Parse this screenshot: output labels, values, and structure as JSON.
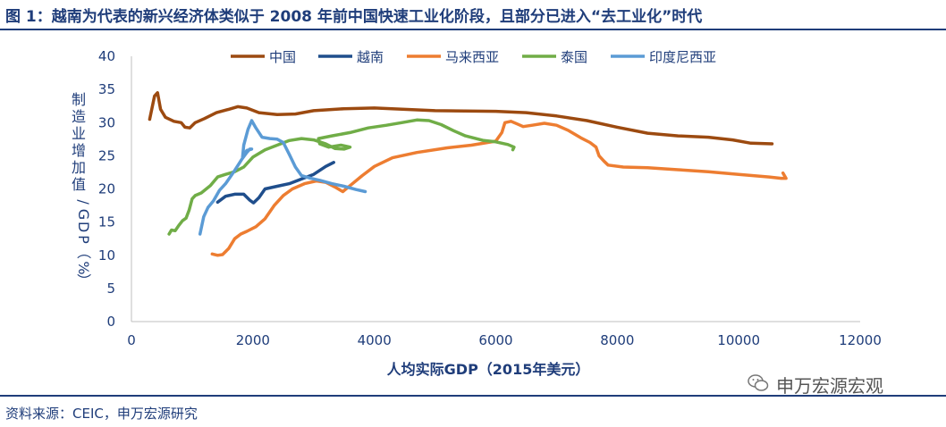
{
  "header": {
    "title": "图 1：越南为代表的新兴经济体类似于 2008 年前中国快速工业化阶段，且部分已进入“去工业化”时代"
  },
  "footer": {
    "source": "资料来源：CEIC，申万宏源研究",
    "watermark": "申万宏源宏观"
  },
  "icons": {
    "watermark": "wechat-icon"
  },
  "chart_data": {
    "type": "line",
    "xlabel": "人均实际GDP（2015年美元）",
    "ylabel": "制造业增加值/GDP（%）",
    "xlim": [
      0,
      12000
    ],
    "ylim": [
      0,
      40
    ],
    "x_ticks": [
      0,
      2000,
      4000,
      6000,
      8000,
      10000,
      12000
    ],
    "y_ticks": [
      0,
      5,
      10,
      15,
      20,
      25,
      30,
      35,
      40
    ],
    "grid": false,
    "legend_position": "top",
    "series": [
      {
        "name": "中国",
        "color": "#9c4a10",
        "points": [
          [
            300,
            30.5
          ],
          [
            380,
            34
          ],
          [
            430,
            34.5
          ],
          [
            480,
            32
          ],
          [
            560,
            30.8
          ],
          [
            700,
            30.2
          ],
          [
            820,
            30
          ],
          [
            880,
            29.3
          ],
          [
            960,
            29.2
          ],
          [
            1050,
            30
          ],
          [
            1200,
            30.6
          ],
          [
            1400,
            31.5
          ],
          [
            1600,
            32
          ],
          [
            1750,
            32.4
          ],
          [
            1900,
            32.2
          ],
          [
            2100,
            31.5
          ],
          [
            2400,
            31.2
          ],
          [
            2700,
            31.3
          ],
          [
            3000,
            31.8
          ],
          [
            3500,
            32.1
          ],
          [
            4000,
            32.2
          ],
          [
            4500,
            32
          ],
          [
            5000,
            31.8
          ],
          [
            6000,
            31.7
          ],
          [
            6500,
            31.5
          ],
          [
            7000,
            31
          ],
          [
            7500,
            30.3
          ],
          [
            8000,
            29.3
          ],
          [
            8500,
            28.4
          ],
          [
            9000,
            28
          ],
          [
            9500,
            27.8
          ],
          [
            9900,
            27.4
          ],
          [
            10200,
            26.9
          ],
          [
            10550,
            26.8
          ]
        ]
      },
      {
        "name": "越南",
        "color": "#1f4e8c",
        "points": [
          [
            1420,
            18
          ],
          [
            1550,
            18.9
          ],
          [
            1700,
            19.2
          ],
          [
            1850,
            19.2
          ],
          [
            1950,
            18.3
          ],
          [
            2010,
            17.9
          ],
          [
            2100,
            18.7
          ],
          [
            2200,
            20
          ],
          [
            2400,
            20.4
          ],
          [
            2600,
            20.8
          ],
          [
            2800,
            21.5
          ],
          [
            3000,
            22.2
          ],
          [
            3200,
            23.4
          ],
          [
            3330,
            24
          ]
        ]
      },
      {
        "name": "马来西亚",
        "color": "#ed7d31",
        "points": [
          [
            1330,
            10.2
          ],
          [
            1420,
            10
          ],
          [
            1500,
            10.1
          ],
          [
            1600,
            11
          ],
          [
            1700,
            12.5
          ],
          [
            1800,
            13.2
          ],
          [
            1900,
            13.6
          ],
          [
            2050,
            14.3
          ],
          [
            2200,
            15.5
          ],
          [
            2350,
            17.5
          ],
          [
            2500,
            19
          ],
          [
            2650,
            20
          ],
          [
            2850,
            20.8
          ],
          [
            3050,
            21.2
          ],
          [
            3200,
            21
          ],
          [
            3350,
            20.3
          ],
          [
            3480,
            19.6
          ],
          [
            3600,
            20.5
          ],
          [
            3800,
            22
          ],
          [
            4000,
            23.4
          ],
          [
            4300,
            24.7
          ],
          [
            4700,
            25.5
          ],
          [
            5200,
            26.2
          ],
          [
            5600,
            26.6
          ],
          [
            6000,
            27.2
          ],
          [
            6100,
            28.5
          ],
          [
            6150,
            30
          ],
          [
            6250,
            30.2
          ],
          [
            6350,
            29.8
          ],
          [
            6450,
            29.4
          ],
          [
            6600,
            29.6
          ],
          [
            6800,
            29.9
          ],
          [
            7000,
            29.6
          ],
          [
            7200,
            28.8
          ],
          [
            7400,
            27.7
          ],
          [
            7550,
            27
          ],
          [
            7650,
            26.3
          ],
          [
            7700,
            25
          ],
          [
            7780,
            24.2
          ],
          [
            7850,
            23.6
          ],
          [
            8100,
            23.3
          ],
          [
            8500,
            23.2
          ],
          [
            9000,
            22.9
          ],
          [
            9500,
            22.6
          ],
          [
            10000,
            22.2
          ],
          [
            10500,
            21.8
          ],
          [
            10700,
            21.6
          ],
          [
            10780,
            21.6
          ],
          [
            10730,
            22.4
          ]
        ]
      },
      {
        "name": "泰国",
        "color": "#70ad47",
        "points": [
          [
            620,
            13.2
          ],
          [
            660,
            13.8
          ],
          [
            720,
            13.7
          ],
          [
            780,
            14.5
          ],
          [
            840,
            15.2
          ],
          [
            900,
            15.6
          ],
          [
            950,
            16.8
          ],
          [
            1000,
            18.5
          ],
          [
            1050,
            19
          ],
          [
            1150,
            19.4
          ],
          [
            1300,
            20.5
          ],
          [
            1420,
            21.8
          ],
          [
            1550,
            22.2
          ],
          [
            1700,
            22.6
          ],
          [
            1850,
            23.3
          ],
          [
            2000,
            24.8
          ],
          [
            2200,
            25.9
          ],
          [
            2400,
            26.6
          ],
          [
            2600,
            27.3
          ],
          [
            2800,
            27.6
          ],
          [
            3000,
            27.4
          ],
          [
            3200,
            26.8
          ],
          [
            3350,
            26.1
          ],
          [
            3500,
            26
          ],
          [
            3600,
            26.3
          ],
          [
            3450,
            26.6
          ],
          [
            3250,
            26.3
          ],
          [
            3100,
            26.8
          ],
          [
            3080,
            27.6
          ],
          [
            3300,
            28
          ],
          [
            3600,
            28.5
          ],
          [
            3900,
            29.2
          ],
          [
            4200,
            29.6
          ],
          [
            4450,
            30
          ],
          [
            4700,
            30.4
          ],
          [
            4900,
            30.3
          ],
          [
            5100,
            29.7
          ],
          [
            5300,
            28.8
          ],
          [
            5500,
            28
          ],
          [
            5800,
            27.3
          ],
          [
            6000,
            27.1
          ],
          [
            6200,
            26.7
          ],
          [
            6300,
            26.3
          ],
          [
            6280,
            25.9
          ]
        ]
      },
      {
        "name": "印度尼西亚",
        "color": "#5b9bd5",
        "points": [
          [
            1130,
            13.2
          ],
          [
            1190,
            15.8
          ],
          [
            1260,
            17.2
          ],
          [
            1350,
            18.2
          ],
          [
            1450,
            19.8
          ],
          [
            1550,
            20.8
          ],
          [
            1680,
            22.5
          ],
          [
            1750,
            23.5
          ],
          [
            1820,
            24.5
          ],
          [
            1900,
            25.5
          ],
          [
            1950,
            26
          ],
          [
            1980,
            26
          ],
          [
            1900,
            25.8
          ],
          [
            1830,
            24.8
          ],
          [
            1850,
            26.6
          ],
          [
            1920,
            29
          ],
          [
            1980,
            30.3
          ],
          [
            2050,
            29.2
          ],
          [
            2150,
            27.8
          ],
          [
            2280,
            27.6
          ],
          [
            2400,
            27.5
          ],
          [
            2500,
            27
          ],
          [
            2600,
            25.2
          ],
          [
            2700,
            23.3
          ],
          [
            2800,
            22
          ],
          [
            2950,
            21.6
          ],
          [
            3100,
            21.3
          ],
          [
            3300,
            20.8
          ],
          [
            3500,
            20.4
          ],
          [
            3700,
            19.9
          ],
          [
            3850,
            19.6
          ]
        ]
      }
    ]
  }
}
